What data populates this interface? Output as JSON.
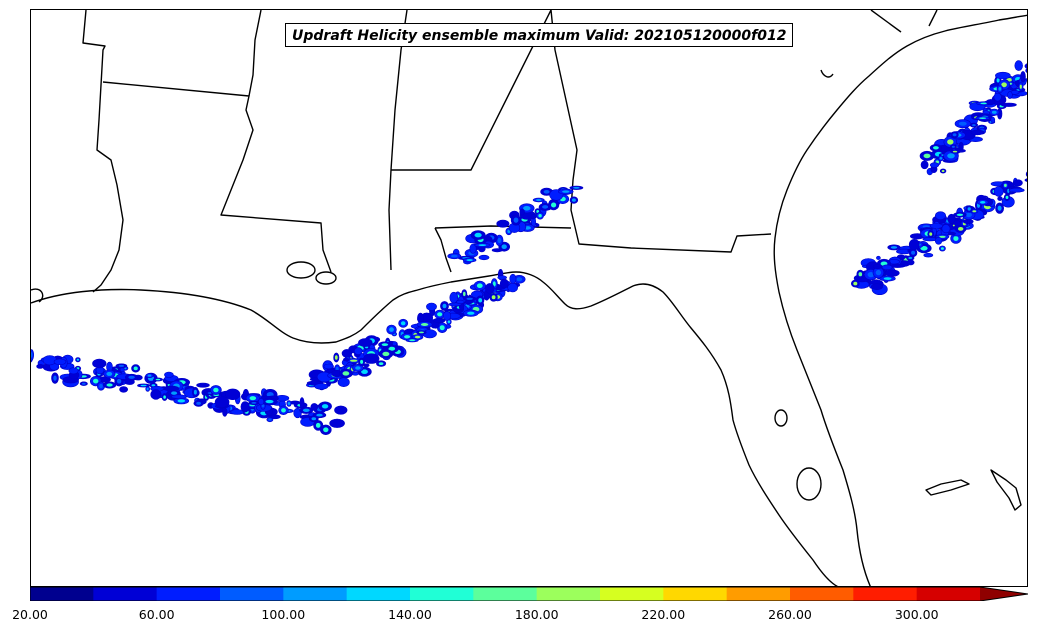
{
  "title": "Updraft Helicity ensemble maximum Valid: 202105120000f012",
  "colorbar": {
    "min": 20,
    "max": 320,
    "step": 20,
    "extend": "max",
    "colors": [
      "#00008f",
      "#0000d6",
      "#001dff",
      "#005cff",
      "#009cff",
      "#00d8ff",
      "#20ffd6",
      "#5cff9c",
      "#9cff5c",
      "#d6ff20",
      "#ffd800",
      "#ff9c00",
      "#ff5c00",
      "#ff1d00",
      "#d60000",
      "#8f0000"
    ],
    "tick_labels": [
      "20.00",
      "60.00",
      "100.00",
      "140.00",
      "180.00",
      "220.00",
      "260.00",
      "300.00"
    ]
  },
  "map": {
    "region": "Southeastern United States and northern Gulf of Mexico",
    "feature_colors": {
      "boundaries": "#000000",
      "contour_edge": "#0000c8"
    }
  }
}
